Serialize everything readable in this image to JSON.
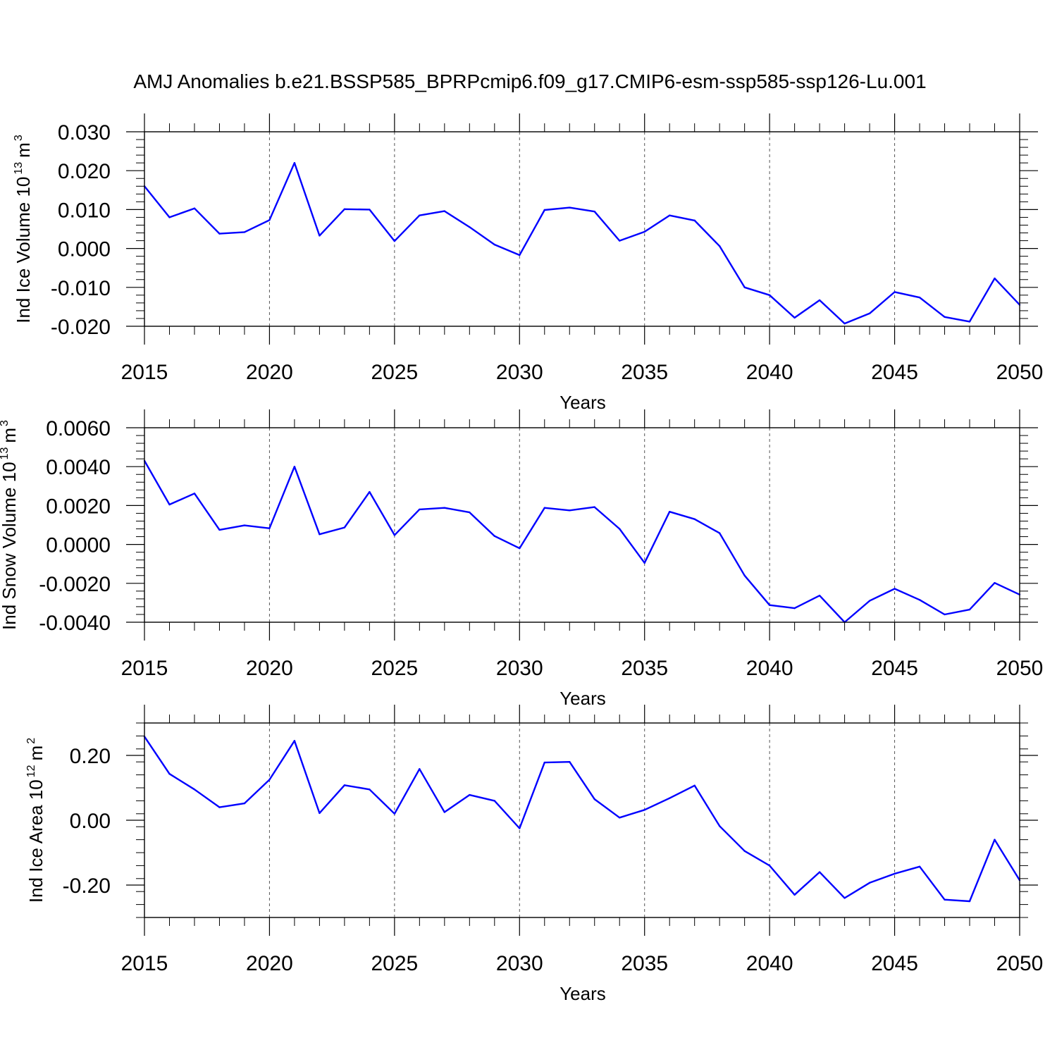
{
  "figure": {
    "title": "AMJ Anomalies b.e21.BSSP585_BPRPcmip6.f09_g17.CMIP6-esm-ssp585-ssp126-Lu.001"
  },
  "colors": {
    "line": "#0000ff",
    "axis": "#000000",
    "grid": "#555555",
    "background": "#ffffff"
  },
  "chart_data": [
    {
      "type": "line",
      "name": "ice-volume",
      "ylabel": "Ind Ice Volume 10",
      "ylabel_exp": "13",
      "ylabel_unit": "m",
      "ylabel_unit_exp": "3",
      "xlabel": "Years",
      "xlim": [
        2015,
        2050
      ],
      "ylim": [
        -0.02,
        0.03
      ],
      "y_ticks": [
        -0.02,
        -0.01,
        0.0,
        0.01,
        0.02,
        0.03
      ],
      "y_tick_labels": [
        "-0.020",
        "-0.010",
        "0.000",
        "0.010",
        "0.020",
        "0.030"
      ],
      "x_ticks": [
        2015,
        2020,
        2025,
        2030,
        2035,
        2040,
        2045,
        2050
      ],
      "x_tick_labels": [
        "2015",
        "2020",
        "2025",
        "2030",
        "2035",
        "2040",
        "2045",
        "2050"
      ],
      "grid": "dashed vertical at major x ticks",
      "x": [
        2015,
        2016,
        2017,
        2018,
        2019,
        2020,
        2021,
        2022,
        2023,
        2024,
        2025,
        2026,
        2027,
        2028,
        2029,
        2030,
        2031,
        2032,
        2033,
        2034,
        2035,
        2036,
        2037,
        2038,
        2039,
        2040,
        2041,
        2042,
        2043,
        2044,
        2045,
        2046,
        2047,
        2048,
        2049,
        2050
      ],
      "y": [
        0.016,
        0.008,
        0.0103,
        0.0038,
        0.0042,
        0.0073,
        0.022,
        0.0033,
        0.0101,
        0.01,
        0.0019,
        0.0085,
        0.0096,
        0.0055,
        0.001,
        -0.0017,
        0.0099,
        0.0105,
        0.0095,
        0.002,
        0.0043,
        0.0085,
        0.0072,
        0.0006,
        -0.01,
        -0.012,
        -0.0178,
        -0.0133,
        -0.0193,
        -0.0167,
        -0.0112,
        -0.0126,
        -0.0176,
        -0.0188,
        -0.0077,
        -0.0145
      ]
    },
    {
      "type": "line",
      "name": "snow-volume",
      "ylabel": "Ind Snow Volume 10",
      "ylabel_exp": "13",
      "ylabel_unit": "m",
      "ylabel_unit_exp": "3",
      "xlabel": "Years",
      "xlim": [
        2015,
        2050
      ],
      "ylim": [
        -0.004,
        0.006
      ],
      "y_ticks": [
        -0.004,
        -0.002,
        0.0,
        0.002,
        0.004,
        0.006
      ],
      "y_tick_labels": [
        "-0.0040",
        "-0.0020",
        "0.0000",
        "0.0020",
        "0.0040",
        "0.0060"
      ],
      "x_ticks": [
        2015,
        2020,
        2025,
        2030,
        2035,
        2040,
        2045,
        2050
      ],
      "x_tick_labels": [
        "2015",
        "2020",
        "2025",
        "2030",
        "2035",
        "2040",
        "2045",
        "2050"
      ],
      "grid": "dashed vertical at major x ticks",
      "x": [
        2015,
        2016,
        2017,
        2018,
        2019,
        2020,
        2021,
        2022,
        2023,
        2024,
        2025,
        2026,
        2027,
        2028,
        2029,
        2030,
        2031,
        2032,
        2033,
        2034,
        2035,
        2036,
        2037,
        2038,
        2039,
        2040,
        2041,
        2042,
        2043,
        2044,
        2045,
        2046,
        2047,
        2048,
        2049,
        2050
      ],
      "y": [
        0.0043,
        0.00205,
        0.00262,
        0.00075,
        0.00098,
        0.00083,
        0.004,
        0.00052,
        0.00087,
        0.0027,
        0.00048,
        0.0018,
        0.00188,
        0.00165,
        0.00043,
        -0.0002,
        0.00188,
        0.00175,
        0.00192,
        0.0008,
        -0.00095,
        0.00168,
        0.0013,
        0.00058,
        -0.0016,
        -0.00312,
        -0.00328,
        -0.00263,
        -0.004,
        -0.0029,
        -0.00228,
        -0.00285,
        -0.0036,
        -0.00335,
        -0.00198,
        -0.00258
      ]
    },
    {
      "type": "line",
      "name": "ice-area",
      "ylabel": "Ind Ice Area 10",
      "ylabel_exp": "12",
      "ylabel_unit": "m",
      "ylabel_unit_exp": "2",
      "xlabel": "Years",
      "xlim": [
        2015,
        2050
      ],
      "ylim": [
        -0.3,
        0.3
      ],
      "y_ticks": [
        -0.2,
        0.0,
        0.2
      ],
      "y_tick_labels": [
        "-0.20",
        "0.00",
        "0.20"
      ],
      "x_ticks": [
        2015,
        2020,
        2025,
        2030,
        2035,
        2040,
        2045,
        2050
      ],
      "x_tick_labels": [
        "2015",
        "2020",
        "2025",
        "2030",
        "2035",
        "2040",
        "2045",
        "2050"
      ],
      "grid": "dashed vertical at major x ticks",
      "x": [
        2015,
        2016,
        2017,
        2018,
        2019,
        2020,
        2021,
        2022,
        2023,
        2024,
        2025,
        2026,
        2027,
        2028,
        2029,
        2030,
        2031,
        2032,
        2033,
        2034,
        2035,
        2036,
        2037,
        2038,
        2039,
        2040,
        2041,
        2042,
        2043,
        2044,
        2045,
        2046,
        2047,
        2048,
        2049,
        2050
      ],
      "y": [
        0.258,
        0.143,
        0.095,
        0.04,
        0.052,
        0.125,
        0.245,
        0.022,
        0.108,
        0.095,
        0.02,
        0.158,
        0.025,
        0.078,
        0.06,
        -0.025,
        0.178,
        0.18,
        0.065,
        0.008,
        0.032,
        0.068,
        0.107,
        -0.018,
        -0.095,
        -0.14,
        -0.23,
        -0.16,
        -0.24,
        -0.193,
        -0.165,
        -0.143,
        -0.245,
        -0.25,
        -0.06,
        -0.185
      ]
    }
  ]
}
